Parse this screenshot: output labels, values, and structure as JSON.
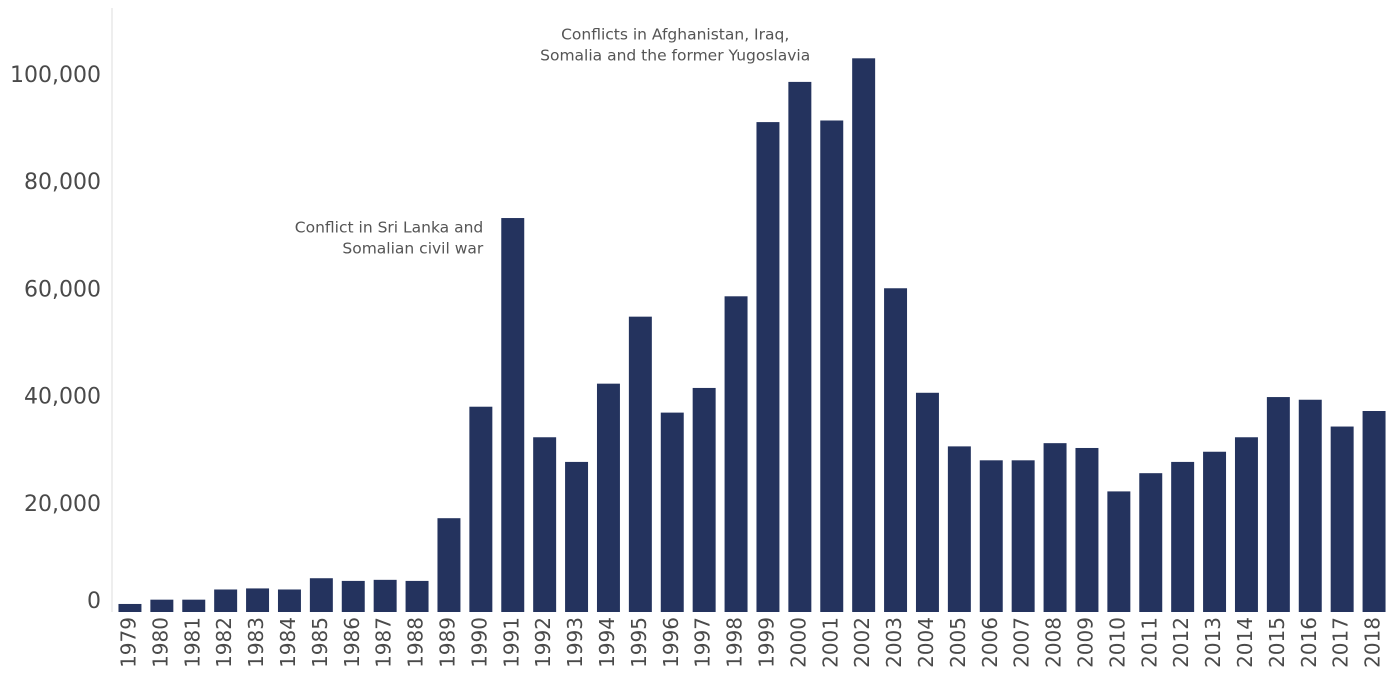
{
  "chart_data": {
    "type": "bar",
    "title": "",
    "xlabel": "",
    "ylabel": "",
    "ylim": [
      0,
      110000
    ],
    "yticks": [
      {
        "value": 0,
        "label": "0"
      },
      {
        "value": 20000,
        "label": "20,000"
      },
      {
        "value": 40000,
        "label": "40,000"
      },
      {
        "value": 60000,
        "label": "60,000"
      },
      {
        "value": 80000,
        "label": "80,000"
      },
      {
        "value": 100000,
        "label": "100,000"
      }
    ],
    "grid": false,
    "bar_color": "#24335e",
    "categories": [
      "1979",
      "1980",
      "1981",
      "1982",
      "1983",
      "1984",
      "1985",
      "1986",
      "1987",
      "1988",
      "1989",
      "1990",
      "1991",
      "1992",
      "1993",
      "1994",
      "1995",
      "1996",
      "1997",
      "1998",
      "1999",
      "2000",
      "2001",
      "2002",
      "2003",
      "2004",
      "2005",
      "2006",
      "2007",
      "2008",
      "2009",
      "2010",
      "2011",
      "2012",
      "2013",
      "2014",
      "2015",
      "2016",
      "2017",
      "2018"
    ],
    "values": [
      1500,
      2300,
      2300,
      4200,
      4400,
      4200,
      6300,
      5800,
      6000,
      5800,
      17500,
      38300,
      73500,
      32600,
      28000,
      42600,
      55100,
      37200,
      41800,
      58900,
      91400,
      98900,
      91700,
      103300,
      60400,
      40900,
      30900,
      28300,
      28300,
      31500,
      30600,
      22500,
      25900,
      28000,
      29900,
      32600,
      40100,
      39600,
      34600,
      37500
    ],
    "annotations": [
      {
        "lines": [
          "Conflict in Sri Lanka and",
          "Somalian civil war"
        ],
        "category": "1991"
      },
      {
        "lines": [
          "Conflicts in Afghanistan, Iraq,",
          "Somalia and the former Yugoslavia"
        ],
        "category": "2002"
      }
    ]
  }
}
